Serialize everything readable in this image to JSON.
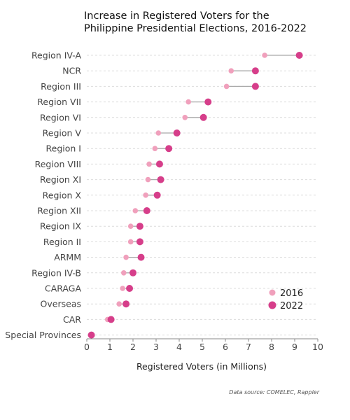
{
  "chart_data": {
    "type": "scatter",
    "subtype": "dumbbell",
    "title_lines": [
      "Increase in Registered Voters for the",
      "Philippine Presidential Elections, 2016-2022"
    ],
    "xlabel": "Registered Voters (in Millions)",
    "xlim": [
      0,
      10
    ],
    "xticks": [
      "0",
      "1",
      "2",
      "3",
      "4",
      "5",
      "6",
      "7",
      "8",
      "9",
      "10"
    ],
    "categories": [
      "Region IV-A",
      "NCR",
      "Region III",
      "Region VII",
      "Region VI",
      "Region V",
      "Region I",
      "Region VIII",
      "Region XI",
      "Region X",
      "Region XII",
      "Region IX",
      "Region II",
      "ARMM",
      "Region IV-B",
      "CARAGA",
      "Overseas",
      "CAR",
      "Special Provinces"
    ],
    "series": [
      {
        "name": "2016",
        "color": "#f0a0bc",
        "values": [
          7.7,
          6.25,
          6.05,
          4.4,
          4.25,
          3.1,
          2.95,
          2.7,
          2.65,
          2.55,
          2.1,
          1.9,
          1.9,
          1.7,
          1.6,
          1.55,
          1.4,
          0.9,
          null
        ]
      },
      {
        "name": "2022",
        "color": "#d63e8a",
        "values": [
          9.2,
          7.3,
          7.3,
          5.25,
          5.05,
          3.9,
          3.55,
          3.15,
          3.2,
          3.05,
          2.6,
          2.3,
          2.3,
          2.35,
          2.0,
          1.85,
          1.7,
          1.05,
          0.2
        ]
      }
    ],
    "legend_position": "bottom-right",
    "grid": "horizontal dashed",
    "source": "Data source: COMELEC, Rappler"
  }
}
